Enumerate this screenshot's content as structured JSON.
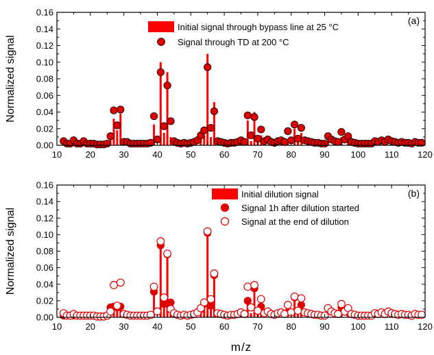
{
  "colors": {
    "accent": "#ff0000",
    "marker_fill": "#dd0000",
    "axis": "#000000"
  },
  "x_axis_label": "m/z",
  "chart_data": [
    {
      "panel_label": "(a)",
      "type": "bar+scatter",
      "ylabel": "Normalized signal",
      "xlim": [
        10,
        120
      ],
      "ylim": [
        0,
        0.16
      ],
      "x_ticks": [
        10,
        20,
        30,
        40,
        50,
        60,
        70,
        80,
        90,
        100,
        110,
        120
      ],
      "y_ticks": [
        0.0,
        0.02,
        0.04,
        0.06,
        0.08,
        0.1,
        0.12,
        0.14,
        0.16
      ],
      "legend_position": "top-right",
      "grid": false,
      "series": [
        {
          "name": "Initial signal through bypass line at 25 °C",
          "kind": "bar",
          "x": [
            12,
            15,
            18,
            26,
            27,
            28,
            29,
            39,
            41,
            42,
            43,
            44,
            53,
            54,
            55,
            56,
            57,
            67,
            68,
            69,
            70,
            71,
            77,
            78,
            79,
            81,
            82,
            83,
            91,
            93,
            95,
            97
          ],
          "y": [
            0.002,
            0.002,
            0.002,
            0.008,
            0.032,
            0.018,
            0.038,
            0.025,
            0.1,
            0.015,
            0.088,
            0.01,
            0.01,
            0.012,
            0.11,
            0.01,
            0.052,
            0.03,
            0.005,
            0.04,
            0.008,
            0.012,
            0.004,
            0.004,
            0.005,
            0.02,
            0.008,
            0.015,
            0.006,
            0.004,
            0.01,
            0.006
          ]
        },
        {
          "name": "Signal through TD at 200 °C",
          "kind": "marker-filled",
          "x": [
            12,
            13,
            14,
            15,
            16,
            17,
            18,
            19,
            20,
            21,
            22,
            23,
            24,
            25,
            26,
            27,
            28,
            29,
            30,
            31,
            32,
            33,
            34,
            35,
            36,
            37,
            38,
            39,
            40,
            41,
            42,
            43,
            44,
            45,
            46,
            47,
            48,
            49,
            50,
            51,
            52,
            53,
            54,
            55,
            56,
            57,
            58,
            59,
            60,
            61,
            62,
            63,
            64,
            65,
            66,
            67,
            68,
            69,
            70,
            71,
            72,
            73,
            74,
            75,
            76,
            77,
            78,
            79,
            80,
            81,
            82,
            83,
            84,
            85,
            86,
            87,
            88,
            89,
            90,
            91,
            92,
            93,
            94,
            95,
            96,
            97,
            98,
            99,
            100,
            101,
            102,
            103,
            104,
            105,
            106,
            107,
            108,
            109,
            110,
            111,
            112,
            113,
            114,
            115,
            116,
            117,
            118,
            119
          ],
          "y": [
            0.005,
            0.002,
            0.002,
            0.006,
            0.002,
            0.002,
            0.005,
            0.002,
            0.002,
            0.002,
            0.001,
            0.001,
            0.001,
            0.002,
            0.011,
            0.042,
            0.024,
            0.043,
            0.004,
            0.004,
            0.002,
            0.002,
            0.002,
            0.002,
            0.002,
            0.002,
            0.003,
            0.035,
            0.007,
            0.088,
            0.023,
            0.072,
            0.029,
            0.005,
            0.003,
            0.002,
            0.003,
            0.002,
            0.003,
            0.004,
            0.006,
            0.012,
            0.018,
            0.094,
            0.021,
            0.041,
            0.005,
            0.004,
            0.003,
            0.002,
            0.003,
            0.003,
            0.004,
            0.006,
            0.004,
            0.036,
            0.012,
            0.034,
            0.008,
            0.019,
            0.005,
            0.007,
            0.004,
            0.003,
            0.005,
            0.006,
            0.004,
            0.017,
            0.006,
            0.025,
            0.008,
            0.021,
            0.006,
            0.005,
            0.004,
            0.003,
            0.003,
            0.002,
            0.002,
            0.011,
            0.007,
            0.005,
            0.004,
            0.016,
            0.007,
            0.011,
            0.004,
            0.003,
            0.002,
            0.002,
            0.002,
            0.002,
            0.002,
            0.005,
            0.004,
            0.006,
            0.004,
            0.007,
            0.005,
            0.004,
            0.003,
            0.004,
            0.003,
            0.003,
            0.002,
            0.004,
            0.003,
            0.003
          ]
        }
      ]
    },
    {
      "panel_label": "(b)",
      "type": "bar+scatter",
      "ylabel": "Normalized signal",
      "xlim": [
        10,
        120
      ],
      "ylim": [
        0,
        0.16
      ],
      "x_ticks": [
        10,
        20,
        30,
        40,
        50,
        60,
        70,
        80,
        90,
        100,
        110,
        120
      ],
      "y_ticks": [
        0.0,
        0.02,
        0.04,
        0.06,
        0.08,
        0.1,
        0.12,
        0.14,
        0.16
      ],
      "legend_position": "top-right",
      "grid": false,
      "series": [
        {
          "name": "Initial dilution signal",
          "kind": "bar",
          "x": [
            26,
            27,
            28,
            29,
            39,
            41,
            42,
            43,
            44,
            53,
            54,
            55,
            56,
            57,
            67,
            68,
            69,
            70,
            71,
            79,
            81,
            82,
            83,
            95,
            97
          ],
          "y": [
            0.012,
            0.012,
            0.012,
            0.013,
            0.03,
            0.085,
            0.015,
            0.078,
            0.018,
            0.01,
            0.016,
            0.103,
            0.012,
            0.05,
            0.02,
            0.005,
            0.034,
            0.008,
            0.012,
            0.006,
            0.024,
            0.008,
            0.015,
            0.012,
            0.006
          ]
        },
        {
          "name": "Signal 1h after dilution started",
          "kind": "marker-filled",
          "x": [
            12,
            15,
            18,
            26,
            27,
            28,
            29,
            39,
            41,
            42,
            43,
            44,
            53,
            54,
            55,
            56,
            57,
            67,
            69,
            70,
            71,
            79,
            81,
            82,
            83,
            95,
            97
          ],
          "y": [
            0.002,
            0.002,
            0.002,
            0.012,
            0.013,
            0.012,
            0.013,
            0.031,
            0.087,
            0.016,
            0.076,
            0.018,
            0.01,
            0.016,
            0.102,
            0.014,
            0.051,
            0.02,
            0.035,
            0.008,
            0.013,
            0.006,
            0.024,
            0.008,
            0.015,
            0.012,
            0.006
          ]
        },
        {
          "name": "Signal at the end of dilution",
          "kind": "marker-open",
          "x": [
            12,
            13,
            14,
            15,
            16,
            17,
            18,
            19,
            20,
            21,
            22,
            23,
            24,
            25,
            26,
            27,
            28,
            29,
            30,
            31,
            32,
            33,
            34,
            35,
            36,
            37,
            38,
            39,
            40,
            41,
            42,
            43,
            44,
            45,
            46,
            47,
            48,
            49,
            50,
            51,
            52,
            53,
            54,
            55,
            56,
            57,
            58,
            59,
            60,
            61,
            62,
            63,
            64,
            65,
            66,
            67,
            68,
            69,
            70,
            71,
            72,
            73,
            74,
            75,
            76,
            77,
            78,
            79,
            80,
            81,
            82,
            83,
            84,
            85,
            86,
            87,
            88,
            89,
            90,
            91,
            92,
            93,
            94,
            95,
            96,
            97,
            98,
            99,
            100,
            101,
            102,
            103,
            104,
            105,
            106,
            107,
            108,
            109,
            110,
            111,
            112,
            113,
            114,
            115,
            116,
            117,
            118,
            119
          ],
          "y": [
            0.005,
            0.002,
            0.002,
            0.004,
            0.002,
            0.002,
            0.002,
            0.002,
            0.002,
            0.002,
            0.001,
            0.001,
            0.001,
            0.002,
            0.007,
            0.039,
            0.014,
            0.042,
            0.004,
            0.003,
            0.002,
            0.002,
            0.002,
            0.002,
            0.002,
            0.002,
            0.003,
            0.037,
            0.007,
            0.092,
            0.024,
            0.077,
            0.01,
            0.005,
            0.003,
            0.002,
            0.003,
            0.002,
            0.003,
            0.004,
            0.006,
            0.011,
            0.018,
            0.104,
            0.022,
            0.053,
            0.005,
            0.004,
            0.003,
            0.002,
            0.003,
            0.003,
            0.004,
            0.006,
            0.004,
            0.037,
            0.012,
            0.039,
            0.008,
            0.022,
            0.005,
            0.007,
            0.004,
            0.003,
            0.005,
            0.006,
            0.004,
            0.015,
            0.006,
            0.025,
            0.008,
            0.023,
            0.006,
            0.005,
            0.004,
            0.003,
            0.003,
            0.002,
            0.002,
            0.011,
            0.007,
            0.005,
            0.004,
            0.016,
            0.007,
            0.011,
            0.004,
            0.003,
            0.002,
            0.002,
            0.002,
            0.002,
            0.002,
            0.005,
            0.004,
            0.006,
            0.004,
            0.007,
            0.005,
            0.004,
            0.003,
            0.004,
            0.003,
            0.003,
            0.002,
            0.004,
            0.003,
            0.003
          ]
        }
      ]
    }
  ]
}
